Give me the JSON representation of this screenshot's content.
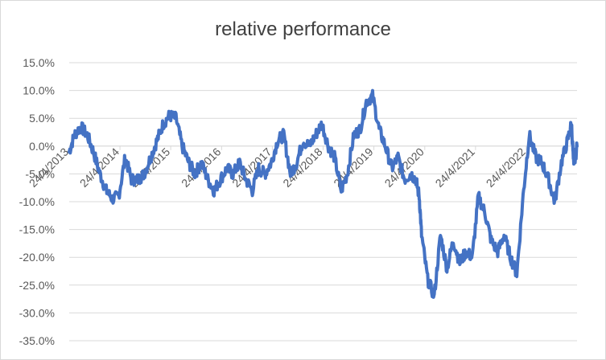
{
  "chart_data": {
    "type": "line",
    "title": "relative performance",
    "xlabel": "",
    "ylabel": "",
    "grid": true,
    "legend": "none",
    "color": "#4472c4",
    "ylim": [
      -0.35,
      0.15
    ],
    "yticks": [
      0.15,
      0.1,
      0.05,
      0.0,
      -0.05,
      -0.1,
      -0.15,
      -0.2,
      -0.25,
      -0.3,
      -0.35
    ],
    "ytick_labels": [
      "15.0%",
      "10.0%",
      "5.0%",
      "0.0%",
      "-5.0%",
      "-10.0%",
      "-15.0%",
      "-20.0%",
      "-25.0%",
      "-30.0%",
      "-35.0%"
    ],
    "xlim": [
      "2013-04-24",
      "2023-04-24"
    ],
    "xtick_dates": [
      "2013-04-24",
      "2014-04-24",
      "2015-04-24",
      "2016-04-24",
      "2017-04-24",
      "2018-04-24",
      "2019-04-24",
      "2020-04-24",
      "2021-04-24",
      "2022-04-24"
    ],
    "xtick_labels": [
      "24/4/2013",
      "24/4/2014",
      "24/4/2015",
      "24/4/2016",
      "24/4/2017",
      "24/4/2018",
      "24/4/2019",
      "24/4/2020",
      "24/4/2021",
      "24/4/2022"
    ],
    "series": [
      {
        "x": [
          "2013-04-24",
          "2013-06-01",
          "2013-07-15",
          "2013-09-01",
          "2013-10-15",
          "2013-12-01",
          "2014-01-15",
          "2014-03-01",
          "2014-04-15",
          "2014-06-01",
          "2014-07-15",
          "2014-09-01",
          "2014-10-15",
          "2014-12-01",
          "2015-01-15",
          "2015-03-01",
          "2015-04-15",
          "2015-06-01",
          "2015-07-15",
          "2015-09-01",
          "2015-10-15",
          "2015-12-01",
          "2016-01-15",
          "2016-03-01",
          "2016-04-15",
          "2016-06-01",
          "2016-07-15",
          "2016-09-01",
          "2016-10-15",
          "2016-12-01",
          "2017-01-15",
          "2017-03-01",
          "2017-04-15",
          "2017-06-01",
          "2017-07-15",
          "2017-09-01",
          "2017-10-15",
          "2017-12-01",
          "2018-01-15",
          "2018-03-01",
          "2018-04-15",
          "2018-06-01",
          "2018-07-15",
          "2018-09-01",
          "2018-10-15",
          "2018-12-01",
          "2019-01-15",
          "2019-03-01",
          "2019-04-15",
          "2019-06-01",
          "2019-07-15",
          "2019-09-01",
          "2019-10-15",
          "2019-12-01",
          "2020-01-15",
          "2020-02-20",
          "2020-03-15",
          "2020-04-01",
          "2020-05-15",
          "2020-07-01",
          "2020-08-15",
          "2020-10-01",
          "2020-11-15",
          "2021-01-01",
          "2021-02-15",
          "2021-04-01",
          "2021-05-15",
          "2021-07-01",
          "2021-08-15",
          "2021-10-01",
          "2021-11-15",
          "2022-01-01",
          "2022-02-15",
          "2022-04-01",
          "2022-05-15",
          "2022-07-01",
          "2022-08-15",
          "2022-10-01",
          "2022-11-15",
          "2023-01-01",
          "2023-02-15",
          "2023-03-15",
          "2023-04-01",
          "2023-04-24"
        ],
        "values": [
          -0.01,
          0.02,
          0.035,
          0.02,
          -0.01,
          -0.05,
          -0.08,
          -0.095,
          -0.09,
          -0.02,
          -0.06,
          -0.06,
          -0.05,
          -0.02,
          0.01,
          0.04,
          0.055,
          0.05,
          0.0,
          -0.03,
          -0.05,
          -0.03,
          -0.06,
          -0.08,
          -0.06,
          -0.04,
          -0.05,
          -0.03,
          -0.06,
          -0.08,
          -0.04,
          -0.05,
          -0.03,
          0.01,
          0.02,
          -0.05,
          -0.03,
          0.01,
          0.0,
          0.02,
          0.04,
          0.0,
          -0.02,
          -0.08,
          -0.05,
          0.02,
          0.03,
          0.08,
          0.09,
          0.03,
          0.0,
          -0.04,
          -0.02,
          -0.06,
          -0.05,
          -0.06,
          -0.09,
          -0.16,
          -0.24,
          -0.27,
          -0.16,
          -0.22,
          -0.17,
          -0.21,
          -0.19,
          -0.2,
          -0.09,
          -0.12,
          -0.17,
          -0.19,
          -0.16,
          -0.2,
          -0.23,
          -0.09,
          0.02,
          -0.02,
          -0.03,
          -0.06,
          -0.1,
          -0.03,
          0.01,
          0.04,
          -0.04,
          0.0
        ]
      }
    ]
  }
}
